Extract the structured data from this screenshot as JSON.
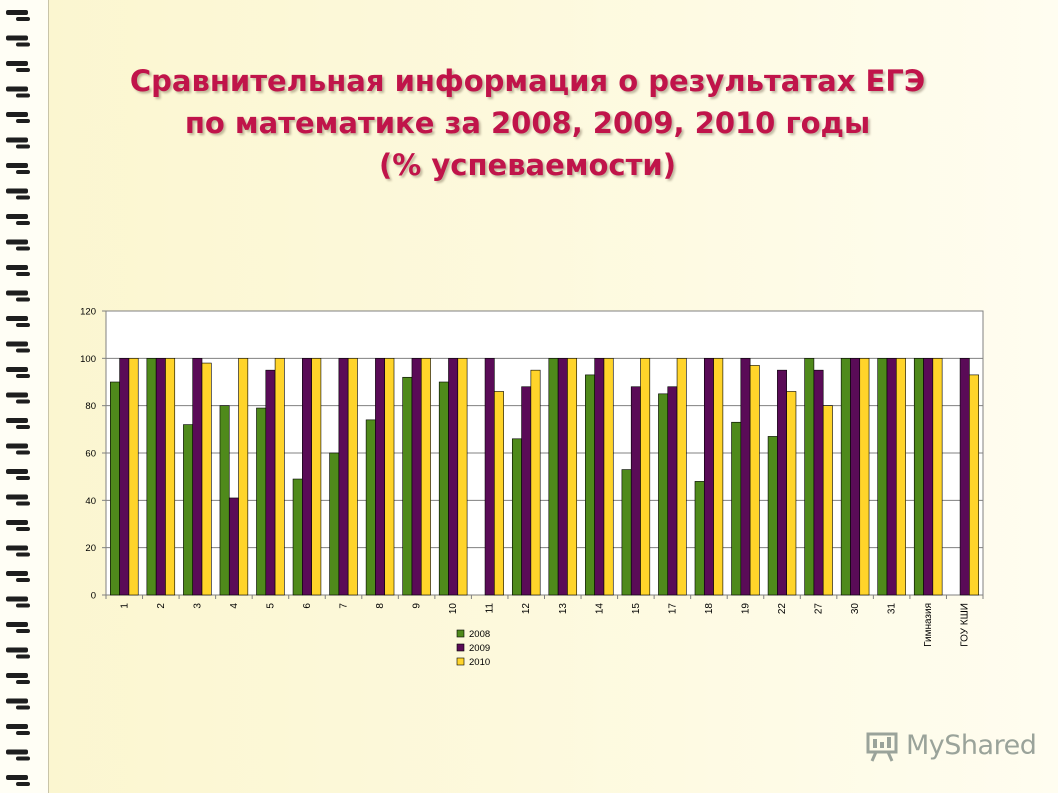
{
  "slide": {
    "title_lines": [
      "Сравнительная  информация о результатах ЕГЭ",
      "по математике за 2008, 2009, 2010 годы",
      "(% успеваемости)"
    ],
    "watermark": "MyShared"
  },
  "colors": {
    "series_2008": "#4f8a1b",
    "series_2009": "#5a0b57",
    "series_2010": "#ffd42a",
    "title": "#c0144a"
  },
  "chart_data": {
    "type": "bar",
    "title": "",
    "xlabel": "",
    "ylabel": "",
    "ylim": [
      0,
      120
    ],
    "yticks": [
      0,
      20,
      40,
      60,
      80,
      100,
      120
    ],
    "grid": true,
    "legend_position": "bottom",
    "categories": [
      "1",
      "2",
      "3",
      "4",
      "5",
      "6",
      "7",
      "8",
      "9",
      "10",
      "11",
      "12",
      "13",
      "14",
      "15",
      "17",
      "18",
      "19",
      "22",
      "27",
      "30",
      "31",
      "Гимназия",
      "ГОУ КШИ"
    ],
    "series": [
      {
        "name": "2008",
        "values": [
          90,
          100,
          72,
          80,
          79,
          49,
          60,
          74,
          92,
          90,
          null,
          66,
          100,
          93,
          53,
          85,
          48,
          73,
          67,
          100,
          100,
          100,
          100,
          null
        ]
      },
      {
        "name": "2009",
        "values": [
          100,
          100,
          100,
          41,
          95,
          100,
          100,
          100,
          100,
          100,
          100,
          88,
          100,
          100,
          88,
          88,
          100,
          100,
          95,
          95,
          100,
          100,
          100,
          100
        ]
      },
      {
        "name": "2010",
        "values": [
          100,
          100,
          98,
          100,
          100,
          100,
          100,
          100,
          100,
          100,
          86,
          95,
          100,
          100,
          100,
          100,
          100,
          97,
          86,
          80,
          100,
          100,
          100,
          93
        ]
      }
    ]
  }
}
